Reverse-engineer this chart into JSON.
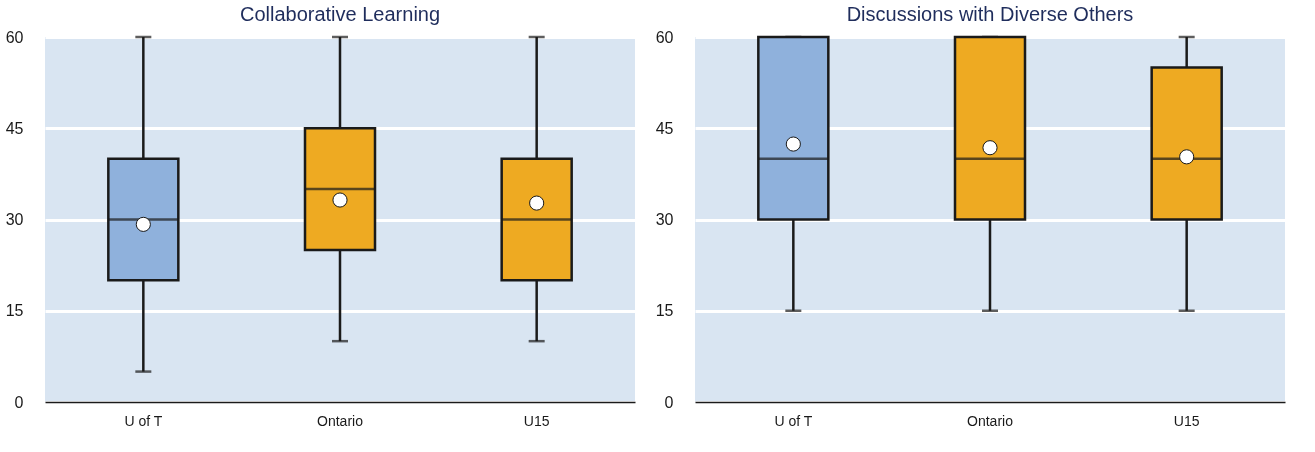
{
  "chart_data": [
    {
      "type": "box",
      "title": "Collaborative Learning",
      "categories": [
        "U of T",
        "Ontario",
        "U15"
      ],
      "colors": [
        "#8fb1dc",
        "#eeaa22",
        "#eeaa22"
      ],
      "ylim": [
        0,
        60
      ],
      "yticks": [
        0,
        15,
        30,
        45,
        60
      ],
      "grid": "y",
      "boxes": [
        {
          "low": 5,
          "q1": 20,
          "median": 30,
          "q3": 40,
          "high": 60,
          "mean": 29.2
        },
        {
          "low": 10,
          "q1": 25,
          "median": 35,
          "q3": 45,
          "high": 60,
          "mean": 33.2
        },
        {
          "low": 10,
          "q1": 20,
          "median": 30,
          "q3": 40,
          "high": 60,
          "mean": 32.7
        }
      ]
    },
    {
      "type": "box",
      "title": "Discussions with Diverse Others",
      "categories": [
        "U of T",
        "Ontario",
        "U15"
      ],
      "colors": [
        "#8fb1dc",
        "#eeaa22",
        "#eeaa22"
      ],
      "ylim": [
        0,
        60
      ],
      "yticks": [
        0,
        15,
        30,
        45,
        60
      ],
      "grid": "y",
      "boxes": [
        {
          "low": 15,
          "q1": 30,
          "median": 40,
          "q3": 60,
          "high": 60,
          "mean": 42.4
        },
        {
          "low": 15,
          "q1": 30,
          "median": 40,
          "q3": 60,
          "high": 60,
          "mean": 41.8
        },
        {
          "low": 15,
          "q1": 30,
          "median": 40,
          "q3": 55,
          "high": 60,
          "mean": 40.3
        }
      ]
    }
  ]
}
